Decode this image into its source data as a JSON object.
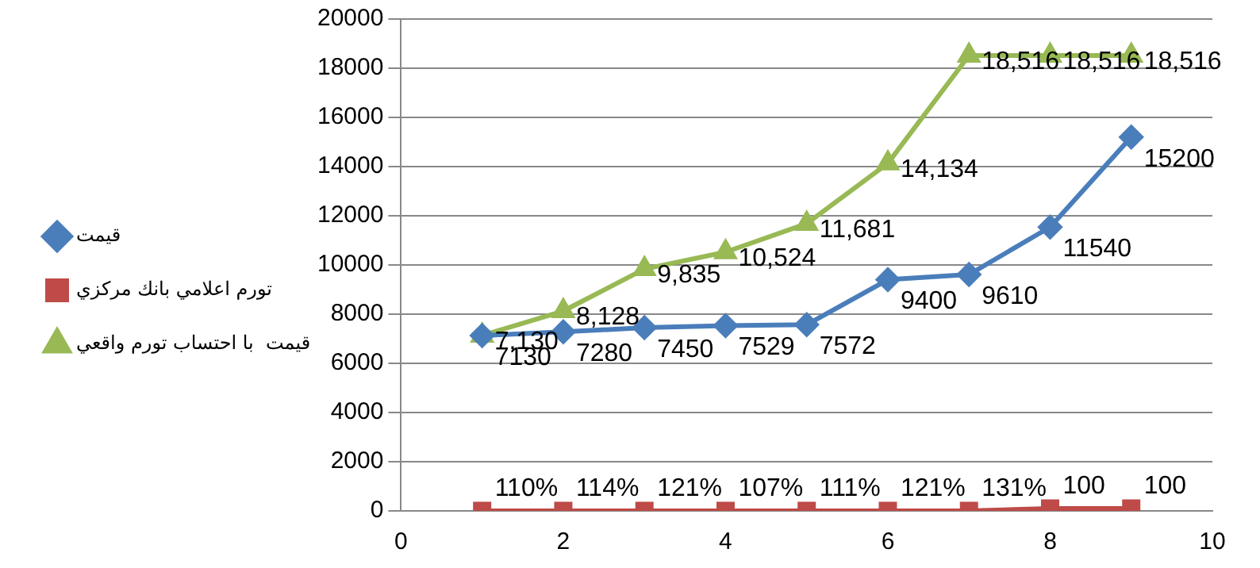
{
  "chart_data": {
    "type": "line",
    "x": [
      1,
      2,
      3,
      4,
      5,
      6,
      7,
      8,
      9
    ],
    "xlim": [
      0,
      10
    ],
    "xticks": [
      0,
      2,
      4,
      6,
      8,
      10
    ],
    "ylim": [
      0,
      20000
    ],
    "yticks": [
      0,
      2000,
      4000,
      6000,
      8000,
      10000,
      12000,
      14000,
      16000,
      18000,
      20000
    ],
    "grid": "y",
    "legend": "left",
    "series": [
      {
        "name": "قیمت",
        "color": "#4a7ebb",
        "marker": "diamond",
        "values": [
          7130,
          7280,
          7450,
          7529,
          7572,
          9400,
          9610,
          11540,
          15200
        ],
        "value_labels": [
          "7130",
          "7280",
          "7450",
          "7529",
          "7572",
          "9400",
          "9610",
          "11540",
          "15200"
        ]
      },
      {
        "name": "تورم اعلامي بانك مركزي",
        "color": "#be4b48",
        "marker": "square",
        "values": [
          1.1,
          1.14,
          1.21,
          1.07,
          1.11,
          1.21,
          1.31,
          100,
          100
        ],
        "value_labels": [
          "110%",
          "114%",
          "121%",
          "107%",
          "111%",
          "121%",
          "131%",
          "100",
          "100"
        ]
      },
      {
        "name": "قیمت  با احتساب تورم واقعي",
        "color": "#98b954",
        "marker": "triangle",
        "values": [
          7130,
          8128,
          9835,
          10524,
          11681,
          14134,
          18516,
          18516,
          18516
        ],
        "value_labels": [
          "7,130",
          "8,128",
          "9,835",
          "10,524",
          "11,681",
          "14,134",
          "18,516",
          "18,516",
          "18,516"
        ]
      }
    ]
  }
}
